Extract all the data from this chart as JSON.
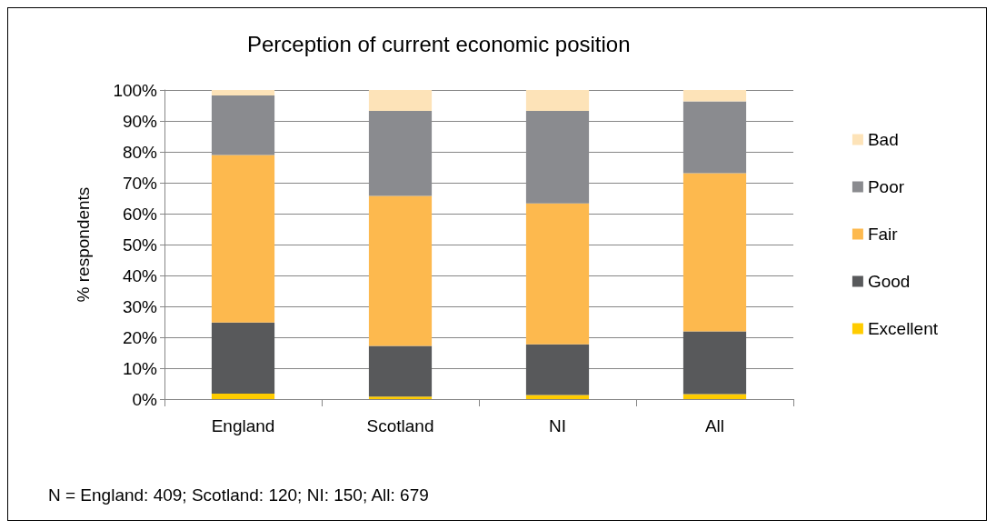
{
  "chart_data": {
    "type": "bar",
    "title": "Perception of current economic position",
    "ylabel": "% respondents",
    "categories": [
      "England",
      "Scotland",
      "NI",
      "All"
    ],
    "stacked": true,
    "series": [
      {
        "name": "Excellent",
        "color": "#ffcc00",
        "values": [
          1.8,
          0.8,
          1.3,
          1.6
        ]
      },
      {
        "name": "Good",
        "color": "#58595b",
        "values": [
          23.0,
          16.4,
          16.4,
          20.3
        ]
      },
      {
        "name": "Fair",
        "color": "#fdb94e",
        "values": [
          54.2,
          48.5,
          45.6,
          51.2
        ]
      },
      {
        "name": "Poor",
        "color": "#8a8b8f",
        "values": [
          19.2,
          27.5,
          29.9,
          23.2
        ]
      },
      {
        "name": "Bad",
        "color": "#fde3b8",
        "values": [
          1.8,
          6.8,
          6.8,
          3.7
        ]
      }
    ],
    "ylim": [
      0,
      100
    ],
    "yticks": [
      {
        "value": 0,
        "label": "0%"
      },
      {
        "value": 10,
        "label": "10%"
      },
      {
        "value": 20,
        "label": "20%"
      },
      {
        "value": 30,
        "label": "30%"
      },
      {
        "value": 40,
        "label": "40%"
      },
      {
        "value": 50,
        "label": "50%"
      },
      {
        "value": 60,
        "label": "60%"
      },
      {
        "value": 70,
        "label": "70%"
      },
      {
        "value": 80,
        "label": "80%"
      },
      {
        "value": 90,
        "label": "90%"
      },
      {
        "value": 100,
        "label": "100%"
      }
    ],
    "grid": "y",
    "legend": "right",
    "annotations": [
      "N = England: 409; Scotland: 120; NI: 150; All: 679"
    ]
  }
}
